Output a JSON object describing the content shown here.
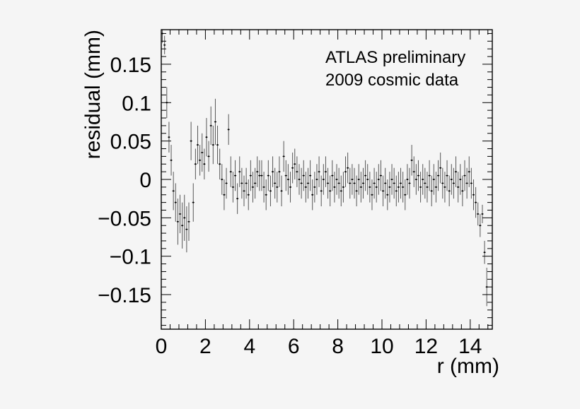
{
  "colors": {
    "background": "#f5f5f5",
    "frame": "#000000",
    "marker": "#000000",
    "error_bar": "#000000"
  },
  "chart_data": {
    "type": "scatter",
    "title": "",
    "xlabel": "r (mm)",
    "ylabel": "residual (mm)",
    "xlim": [
      0,
      15
    ],
    "ylim": [
      -0.195,
      0.195
    ],
    "xticks": [
      0,
      2,
      4,
      6,
      8,
      10,
      12,
      14
    ],
    "xtick_labels": [
      "0",
      "2",
      "4",
      "6",
      "8",
      "10",
      "12",
      "14"
    ],
    "yticks": [
      0.15,
      0.1,
      0.05,
      0,
      -0.05,
      -0.1,
      -0.15
    ],
    "ytick_labels": [
      "0.15",
      "0.1",
      "0.05",
      "0",
      "−0.05",
      "−0.1",
      "−0.15"
    ],
    "annotation": [
      "ATLAS preliminary",
      "2009 cosmic data"
    ],
    "grid": false,
    "series": [
      {
        "name": "residual",
        "marker": "point-with-error-bars",
        "points": [
          {
            "x": 0.05,
            "y": 0.19,
            "err": 0.012
          },
          {
            "x": 0.15,
            "y": 0.175,
            "err": 0.012
          },
          {
            "x": 0.25,
            "y": 0.1,
            "err": 0.02
          },
          {
            "x": 0.35,
            "y": 0.055,
            "err": 0.02
          },
          {
            "x": 0.45,
            "y": 0.025,
            "err": 0.02
          },
          {
            "x": 0.55,
            "y": -0.015,
            "err": 0.025
          },
          {
            "x": 0.65,
            "y": -0.03,
            "err": 0.025
          },
          {
            "x": 0.75,
            "y": -0.055,
            "err": 0.03
          },
          {
            "x": 0.85,
            "y": -0.045,
            "err": 0.025
          },
          {
            "x": 0.95,
            "y": -0.06,
            "err": 0.03
          },
          {
            "x": 1.05,
            "y": -0.05,
            "err": 0.03
          },
          {
            "x": 1.15,
            "y": -0.065,
            "err": 0.03
          },
          {
            "x": 1.25,
            "y": -0.055,
            "err": 0.025
          },
          {
            "x": 1.35,
            "y": 0.05,
            "err": 0.025
          },
          {
            "x": 1.45,
            "y": -0.03,
            "err": 0.025
          },
          {
            "x": 1.55,
            "y": 0.02,
            "err": 0.02
          },
          {
            "x": 1.65,
            "y": 0.045,
            "err": 0.025
          },
          {
            "x": 1.75,
            "y": 0.025,
            "err": 0.02
          },
          {
            "x": 1.85,
            "y": 0.035,
            "err": 0.025
          },
          {
            "x": 1.95,
            "y": 0.02,
            "err": 0.02
          },
          {
            "x": 2.05,
            "y": 0.055,
            "err": 0.025
          },
          {
            "x": 2.15,
            "y": 0.03,
            "err": 0.02
          },
          {
            "x": 2.25,
            "y": 0.07,
            "err": 0.025
          },
          {
            "x": 2.35,
            "y": 0.045,
            "err": 0.025
          },
          {
            "x": 2.45,
            "y": 0.075,
            "err": 0.03
          },
          {
            "x": 2.55,
            "y": 0.045,
            "err": 0.025
          },
          {
            "x": 2.65,
            "y": 0.02,
            "err": 0.02
          },
          {
            "x": 2.75,
            "y": 0.0,
            "err": 0.02
          },
          {
            "x": 2.85,
            "y": -0.02,
            "err": 0.02
          },
          {
            "x": 2.95,
            "y": -0.005,
            "err": 0.02
          },
          {
            "x": 3.05,
            "y": 0.065,
            "err": 0.02
          },
          {
            "x": 3.15,
            "y": 0.01,
            "err": 0.02
          },
          {
            "x": 3.25,
            "y": -0.01,
            "err": 0.02
          },
          {
            "x": 3.35,
            "y": 0.005,
            "err": 0.02
          },
          {
            "x": 3.45,
            "y": -0.025,
            "err": 0.02
          },
          {
            "x": 3.55,
            "y": 0.01,
            "err": 0.02
          },
          {
            "x": 3.65,
            "y": -0.005,
            "err": 0.02
          },
          {
            "x": 3.75,
            "y": -0.015,
            "err": 0.02
          },
          {
            "x": 3.85,
            "y": -0.005,
            "err": 0.02
          },
          {
            "x": 3.95,
            "y": -0.02,
            "err": 0.02
          },
          {
            "x": 4.05,
            "y": 0.005,
            "err": 0.02
          },
          {
            "x": 4.15,
            "y": -0.01,
            "err": 0.02
          },
          {
            "x": 4.25,
            "y": -0.005,
            "err": 0.02
          },
          {
            "x": 4.35,
            "y": 0.01,
            "err": 0.02
          },
          {
            "x": 4.45,
            "y": 0.005,
            "err": 0.02
          },
          {
            "x": 4.55,
            "y": 0.005,
            "err": 0.02
          },
          {
            "x": 4.65,
            "y": -0.01,
            "err": 0.02
          },
          {
            "x": 4.75,
            "y": -0.02,
            "err": 0.02
          },
          {
            "x": 4.85,
            "y": 0.005,
            "err": 0.02
          },
          {
            "x": 4.95,
            "y": -0.015,
            "err": 0.02
          },
          {
            "x": 5.05,
            "y": 0.01,
            "err": 0.02
          },
          {
            "x": 5.15,
            "y": -0.005,
            "err": 0.02
          },
          {
            "x": 5.25,
            "y": -0.01,
            "err": 0.02
          },
          {
            "x": 5.35,
            "y": 0.01,
            "err": 0.02
          },
          {
            "x": 5.45,
            "y": -0.015,
            "err": 0.02
          },
          {
            "x": 5.55,
            "y": 0.03,
            "err": 0.02
          },
          {
            "x": 5.65,
            "y": 0.005,
            "err": 0.02
          },
          {
            "x": 5.75,
            "y": 0.0,
            "err": 0.02
          },
          {
            "x": 5.85,
            "y": -0.01,
            "err": 0.02
          },
          {
            "x": 5.95,
            "y": 0.015,
            "err": 0.02
          },
          {
            "x": 6.05,
            "y": 0.02,
            "err": 0.02
          },
          {
            "x": 6.15,
            "y": 0.01,
            "err": 0.02
          },
          {
            "x": 6.25,
            "y": 0.0,
            "err": 0.02
          },
          {
            "x": 6.35,
            "y": -0.005,
            "err": 0.02
          },
          {
            "x": 6.45,
            "y": 0.005,
            "err": 0.02
          },
          {
            "x": 6.55,
            "y": -0.01,
            "err": 0.02
          },
          {
            "x": 6.65,
            "y": -0.005,
            "err": 0.02
          },
          {
            "x": 6.75,
            "y": 0.005,
            "err": 0.02
          },
          {
            "x": 6.85,
            "y": -0.02,
            "err": 0.02
          },
          {
            "x": 6.95,
            "y": -0.01,
            "err": 0.02
          },
          {
            "x": 7.05,
            "y": 0.0,
            "err": 0.02
          },
          {
            "x": 7.15,
            "y": 0.01,
            "err": 0.02
          },
          {
            "x": 7.25,
            "y": -0.015,
            "err": 0.02
          },
          {
            "x": 7.35,
            "y": 0.0,
            "err": 0.02
          },
          {
            "x": 7.45,
            "y": 0.01,
            "err": 0.02
          },
          {
            "x": 7.55,
            "y": -0.005,
            "err": 0.02
          },
          {
            "x": 7.65,
            "y": -0.015,
            "err": 0.02
          },
          {
            "x": 7.75,
            "y": 0.005,
            "err": 0.02
          },
          {
            "x": 7.85,
            "y": -0.01,
            "err": 0.02
          },
          {
            "x": 7.95,
            "y": 0.0,
            "err": 0.02
          },
          {
            "x": 8.05,
            "y": -0.005,
            "err": 0.02
          },
          {
            "x": 8.15,
            "y": -0.015,
            "err": 0.02
          },
          {
            "x": 8.25,
            "y": -0.01,
            "err": 0.02
          },
          {
            "x": 8.35,
            "y": 0.01,
            "err": 0.02
          },
          {
            "x": 8.45,
            "y": 0.015,
            "err": 0.02
          },
          {
            "x": 8.55,
            "y": -0.005,
            "err": 0.02
          },
          {
            "x": 8.65,
            "y": 0.0,
            "err": 0.02
          },
          {
            "x": 8.75,
            "y": -0.005,
            "err": 0.02
          },
          {
            "x": 8.85,
            "y": -0.015,
            "err": 0.02
          },
          {
            "x": 8.95,
            "y": 0.0,
            "err": 0.02
          },
          {
            "x": 9.05,
            "y": -0.01,
            "err": 0.02
          },
          {
            "x": 9.15,
            "y": -0.005,
            "err": 0.02
          },
          {
            "x": 9.25,
            "y": 0.005,
            "err": 0.02
          },
          {
            "x": 9.35,
            "y": 0.0,
            "err": 0.02
          },
          {
            "x": 9.45,
            "y": -0.01,
            "err": 0.02
          },
          {
            "x": 9.55,
            "y": -0.02,
            "err": 0.02
          },
          {
            "x": 9.65,
            "y": -0.005,
            "err": 0.02
          },
          {
            "x": 9.75,
            "y": -0.01,
            "err": 0.02
          },
          {
            "x": 9.85,
            "y": 0.0,
            "err": 0.02
          },
          {
            "x": 9.95,
            "y": 0.005,
            "err": 0.02
          },
          {
            "x": 10.05,
            "y": -0.015,
            "err": 0.02
          },
          {
            "x": 10.15,
            "y": -0.005,
            "err": 0.02
          },
          {
            "x": 10.25,
            "y": -0.02,
            "err": 0.02
          },
          {
            "x": 10.35,
            "y": -0.01,
            "err": 0.02
          },
          {
            "x": 10.45,
            "y": 0.0,
            "err": 0.02
          },
          {
            "x": 10.55,
            "y": -0.005,
            "err": 0.02
          },
          {
            "x": 10.65,
            "y": -0.015,
            "err": 0.02
          },
          {
            "x": 10.75,
            "y": -0.01,
            "err": 0.02
          },
          {
            "x": 10.85,
            "y": -0.005,
            "err": 0.02
          },
          {
            "x": 10.95,
            "y": -0.01,
            "err": 0.02
          },
          {
            "x": 11.05,
            "y": -0.02,
            "err": 0.02
          },
          {
            "x": 11.15,
            "y": 0.0,
            "err": 0.02
          },
          {
            "x": 11.25,
            "y": -0.005,
            "err": 0.02
          },
          {
            "x": 11.35,
            "y": 0.025,
            "err": 0.02
          },
          {
            "x": 11.45,
            "y": 0.01,
            "err": 0.02
          },
          {
            "x": 11.55,
            "y": 0.0,
            "err": 0.02
          },
          {
            "x": 11.65,
            "y": 0.005,
            "err": 0.02
          },
          {
            "x": 11.75,
            "y": -0.01,
            "err": 0.02
          },
          {
            "x": 11.85,
            "y": 0.0,
            "err": 0.02
          },
          {
            "x": 11.95,
            "y": -0.005,
            "err": 0.02
          },
          {
            "x": 12.05,
            "y": -0.01,
            "err": 0.02
          },
          {
            "x": 12.15,
            "y": 0.005,
            "err": 0.02
          },
          {
            "x": 12.25,
            "y": -0.015,
            "err": 0.02
          },
          {
            "x": 12.35,
            "y": 0.0,
            "err": 0.02
          },
          {
            "x": 12.45,
            "y": -0.01,
            "err": 0.02
          },
          {
            "x": 12.55,
            "y": 0.005,
            "err": 0.02
          },
          {
            "x": 12.65,
            "y": 0.015,
            "err": 0.02
          },
          {
            "x": 12.75,
            "y": -0.005,
            "err": 0.02
          },
          {
            "x": 12.85,
            "y": -0.01,
            "err": 0.02
          },
          {
            "x": 12.95,
            "y": 0.005,
            "err": 0.02
          },
          {
            "x": 13.05,
            "y": -0.015,
            "err": 0.02
          },
          {
            "x": 13.15,
            "y": 0.0,
            "err": 0.02
          },
          {
            "x": 13.25,
            "y": -0.005,
            "err": 0.02
          },
          {
            "x": 13.35,
            "y": 0.01,
            "err": 0.02
          },
          {
            "x": 13.45,
            "y": -0.01,
            "err": 0.02
          },
          {
            "x": 13.55,
            "y": 0.0,
            "err": 0.02
          },
          {
            "x": 13.65,
            "y": -0.015,
            "err": 0.02
          },
          {
            "x": 13.75,
            "y": 0.005,
            "err": 0.02
          },
          {
            "x": 13.85,
            "y": -0.005,
            "err": 0.02
          },
          {
            "x": 13.95,
            "y": 0.01,
            "err": 0.02
          },
          {
            "x": 14.05,
            "y": -0.005,
            "err": 0.02
          },
          {
            "x": 14.15,
            "y": -0.02,
            "err": 0.02
          },
          {
            "x": 14.25,
            "y": -0.03,
            "err": 0.02
          },
          {
            "x": 14.35,
            "y": -0.045,
            "err": 0.015
          },
          {
            "x": 14.45,
            "y": -0.06,
            "err": 0.015
          },
          {
            "x": 14.55,
            "y": -0.045,
            "err": 0.012
          },
          {
            "x": 14.65,
            "y": -0.095,
            "err": 0.015
          },
          {
            "x": 14.75,
            "y": -0.14,
            "err": 0.025
          }
        ]
      }
    ]
  }
}
